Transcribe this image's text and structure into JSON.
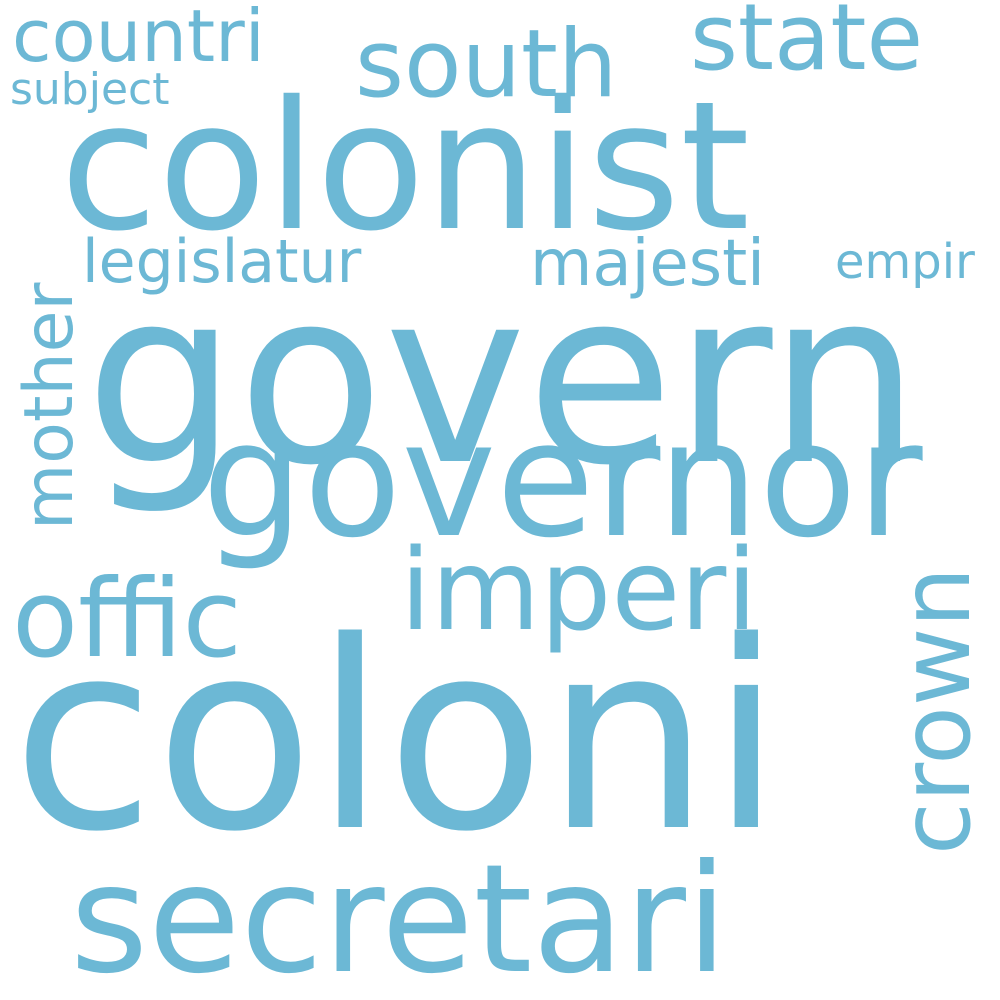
{
  "color": "#6cb8d5",
  "words": {
    "coloni": "coloni",
    "govern": "govern",
    "colonist": "colonist",
    "governor": "governor",
    "secretari": "secretari",
    "imperi": "imperi",
    "offic": "offic",
    "crown": "crown",
    "south": "south",
    "state": "state",
    "countri": "countri",
    "mother": "mother",
    "legislatur": "legislatur",
    "majesti": "majesti",
    "empir": "empir",
    "subject": "subject"
  }
}
